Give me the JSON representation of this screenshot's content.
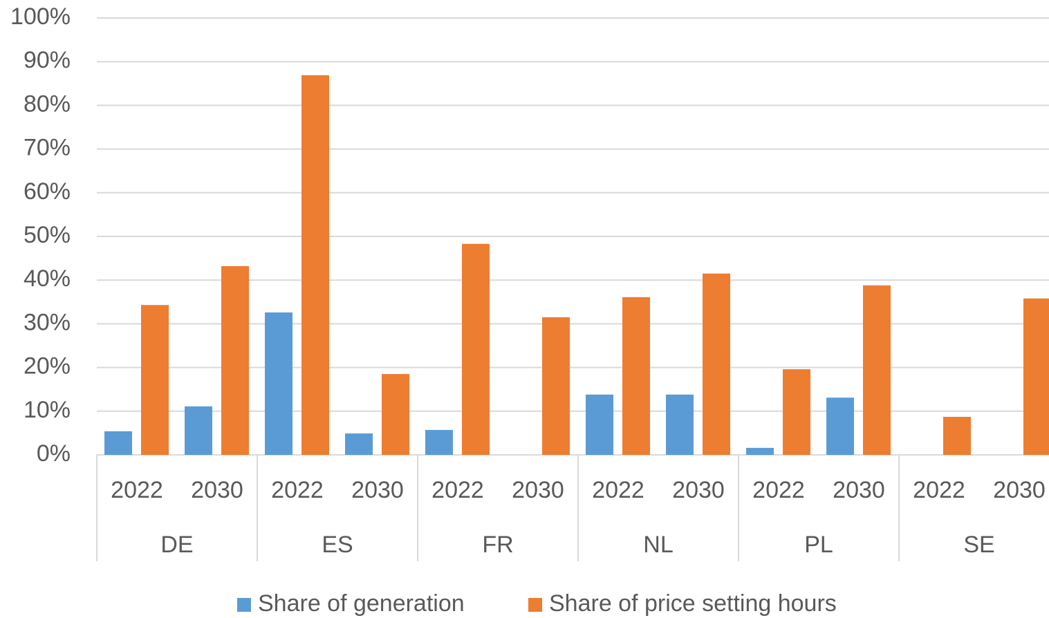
{
  "chart_data": {
    "type": "bar",
    "groups": [
      "DE",
      "ES",
      "FR",
      "NL",
      "PL",
      "SE"
    ],
    "categories": [
      "2022",
      "2030",
      "2022",
      "2030",
      "2022",
      "2030",
      "2022",
      "2030",
      "2022",
      "2030",
      "2022",
      "2030"
    ],
    "series": [
      {
        "name": "Share of generation",
        "color": "#5b9bd5",
        "values": [
          5.4,
          11.1,
          32.6,
          4.9,
          5.7,
          0,
          13.8,
          13.8,
          1.6,
          13.1,
          0,
          0
        ]
      },
      {
        "name": "Share of price setting hours",
        "color": "#ed7d31",
        "values": [
          34.3,
          43.2,
          86.9,
          18.5,
          48.3,
          31.5,
          36.1,
          41.5,
          19.6,
          38.8,
          8.7,
          35.8
        ]
      }
    ],
    "ylim": [
      0,
      100
    ],
    "yticks": [
      {
        "value": 0,
        "label": "0%"
      },
      {
        "value": 10,
        "label": "10%"
      },
      {
        "value": 20,
        "label": "20%"
      },
      {
        "value": 30,
        "label": "30%"
      },
      {
        "value": 40,
        "label": "40%"
      },
      {
        "value": 50,
        "label": "50%"
      },
      {
        "value": 60,
        "label": "60%"
      },
      {
        "value": 70,
        "label": "70%"
      },
      {
        "value": 80,
        "label": "80%"
      },
      {
        "value": 90,
        "label": "90%"
      },
      {
        "value": 100,
        "label": "100%"
      }
    ],
    "grid": true,
    "legend": "bottom"
  }
}
